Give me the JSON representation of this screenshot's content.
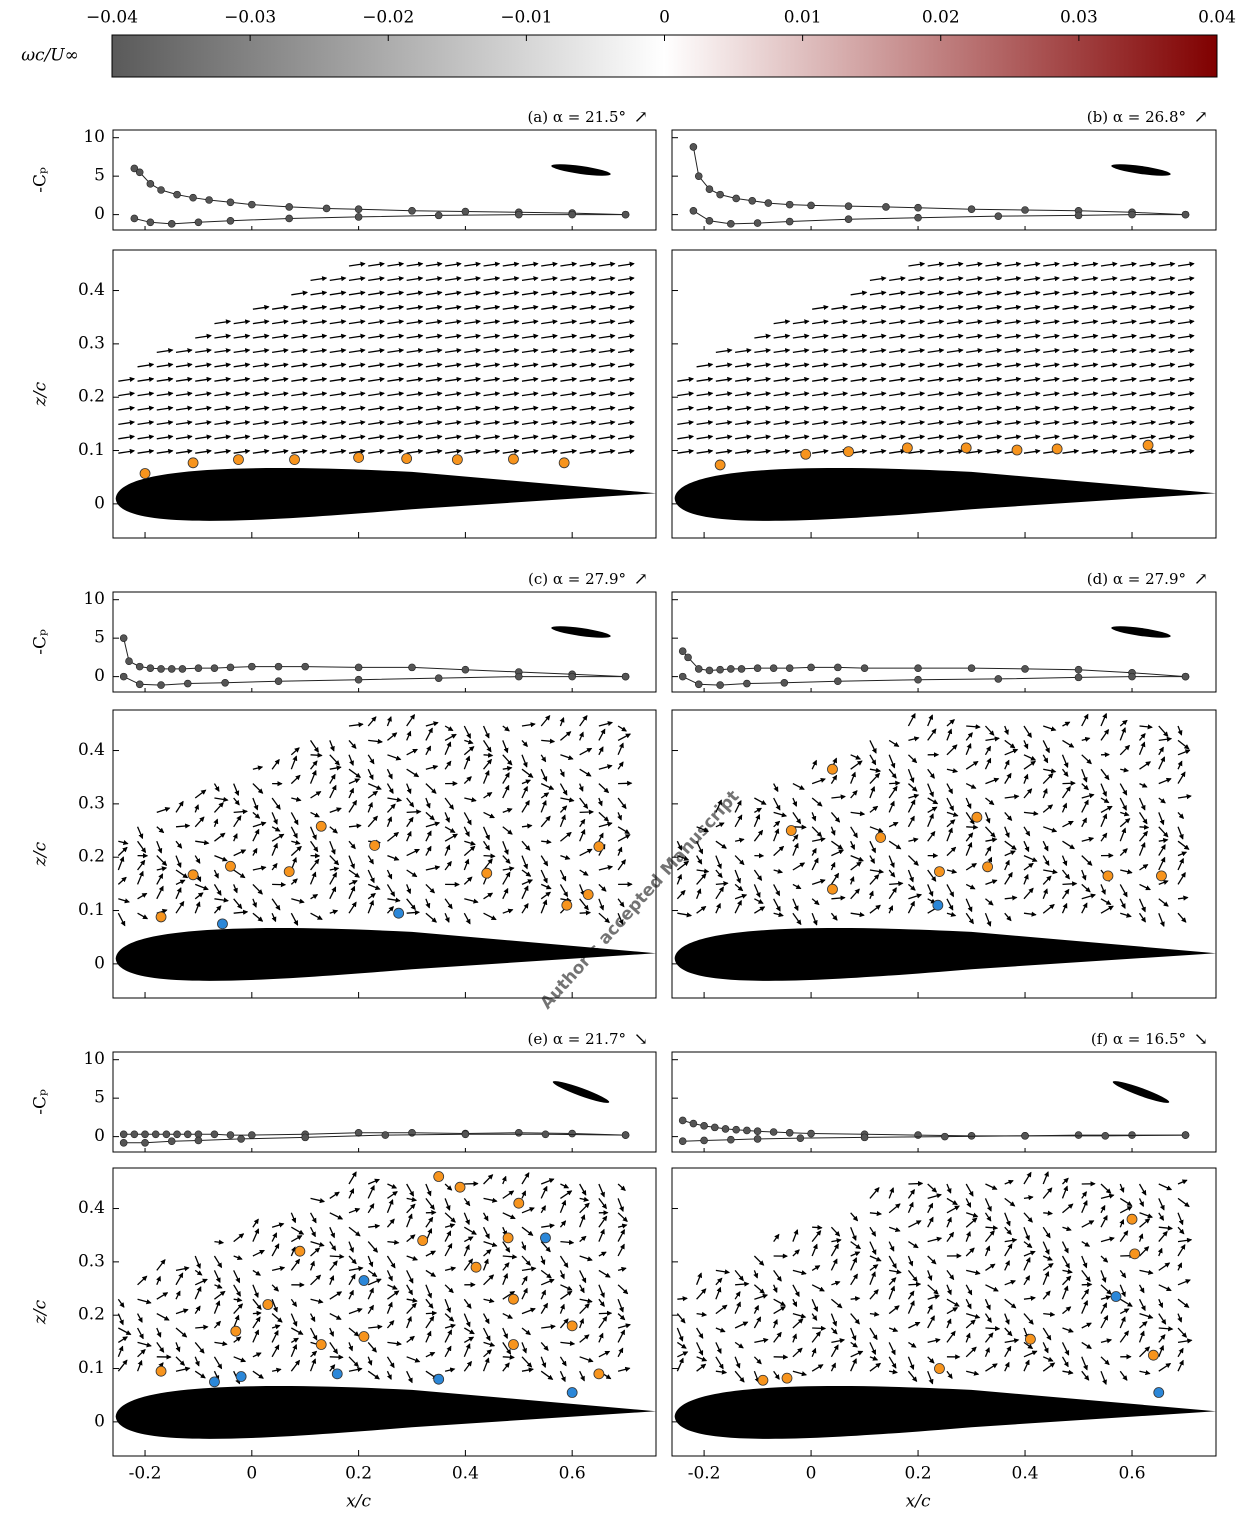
{
  "chart_data": {
    "type": "panels",
    "colorbar": {
      "label": "ωc/U∞",
      "lim": [
        -0.04,
        0.04
      ],
      "ticks": [
        {
          "value": -0.04,
          "label": "−0.04"
        },
        {
          "value": -0.03,
          "label": "−0.03"
        },
        {
          "value": -0.02,
          "label": "−0.02"
        },
        {
          "value": -0.01,
          "label": "−0.01"
        },
        0,
        0.01,
        0.02,
        0.03,
        0.04
      ],
      "colors": [
        "#5a5a5a",
        "#ffffff",
        "#800000"
      ]
    },
    "cp_label": "-Cₚ",
    "cp_ylim": [
      -2,
      11
    ],
    "cp_yticks": [
      0,
      5,
      10
    ],
    "z_label": "z/c",
    "field_ylim": [
      -0.064,
      0.476
    ],
    "field_yticks": [
      0,
      0.1,
      0.2,
      0.3,
      0.4
    ],
    "x_label": "x/c",
    "xlim": [
      -0.26,
      0.757
    ],
    "xticks": [
      -0.2,
      0,
      0.2,
      0.4,
      0.6
    ],
    "cp_color": "#555555",
    "panels": [
      {
        "title": "(a) α = 21.5°",
        "direction": "↗",
        "cp": [
          {
            "x": [
              -0.22,
              -0.21,
              -0.19,
              -0.17,
              -0.14,
              -0.11,
              -0.08,
              -0.04,
              0,
              0.07,
              0.14,
              0.2,
              0.3,
              0.4,
              0.5,
              0.6,
              0.7
            ],
            "values": [
              6,
              5.5,
              4,
              3.2,
              2.6,
              2.2,
              1.9,
              1.6,
              1.3,
              1.0,
              0.8,
              0.7,
              0.5,
              0.4,
              0.3,
              0.2,
              0
            ]
          },
          {
            "x": [
              -0.22,
              -0.19,
              -0.15,
              -0.1,
              -0.04,
              0.07,
              0.2,
              0.35,
              0.5,
              0.6,
              0.7
            ],
            "values": [
              -0.5,
              -1,
              -1.2,
              -1,
              -0.8,
              -0.5,
              -0.3,
              -0.1,
              0,
              0,
              0
            ]
          }
        ],
        "vortices": [
          {
            "color": "#f7941d",
            "x": [
              -0.2,
              -0.11,
              -0.025,
              0.08,
              0.2,
              0.29,
              0.385,
              0.49,
              0.585
            ],
            "z": [
              0.057,
              0.077,
              0.083,
              0.083,
              0.087,
              0.085,
              0.083,
              0.084,
              0.077
            ]
          },
          {
            "color": "#2b87d8",
            "x": [],
            "z": []
          }
        ]
      },
      {
        "title": "(b) α = 26.8°",
        "direction": "↗",
        "cp": [
          {
            "x": [
              -0.22,
              -0.21,
              -0.19,
              -0.17,
              -0.14,
              -0.11,
              -0.08,
              -0.04,
              0,
              0.07,
              0.14,
              0.2,
              0.3,
              0.4,
              0.5,
              0.6,
              0.7
            ],
            "values": [
              8.8,
              5,
              3.3,
              2.6,
              2.1,
              1.8,
              1.5,
              1.3,
              1.2,
              1.1,
              1.0,
              0.9,
              0.7,
              0.6,
              0.5,
              0.3,
              0
            ]
          },
          {
            "x": [
              -0.22,
              -0.19,
              -0.15,
              -0.1,
              -0.04,
              0.07,
              0.2,
              0.35,
              0.5,
              0.6,
              0.7
            ],
            "values": [
              0.5,
              -0.8,
              -1.2,
              -1.1,
              -0.9,
              -0.6,
              -0.4,
              -0.2,
              -0.1,
              0,
              0
            ]
          }
        ],
        "vortices": [
          {
            "color": "#f7941d",
            "x": [
              -0.17,
              -0.01,
              0.07,
              0.18,
              0.29,
              0.385,
              0.46,
              0.63
            ],
            "z": [
              0.073,
              0.093,
              0.098,
              0.105,
              0.105,
              0.101,
              0.103,
              0.11
            ]
          },
          {
            "color": "#2b87d8",
            "x": [],
            "z": []
          }
        ]
      },
      {
        "title": "(c) α = 27.9°",
        "direction": "↗",
        "cp": [
          {
            "x": [
              -0.24,
              -0.23,
              -0.21,
              -0.19,
              -0.17,
              -0.15,
              -0.13,
              -0.1,
              -0.07,
              -0.04,
              0,
              0.05,
              0.1,
              0.2,
              0.3,
              0.4,
              0.5,
              0.6,
              0.7
            ],
            "values": [
              5,
              2,
              1.3,
              1.1,
              1,
              1,
              1,
              1.1,
              1.1,
              1.2,
              1.3,
              1.3,
              1.3,
              1.2,
              1.2,
              0.9,
              0.6,
              0.3,
              0
            ]
          },
          {
            "x": [
              -0.24,
              -0.21,
              -0.17,
              -0.12,
              -0.05,
              0.05,
              0.2,
              0.35,
              0.5,
              0.6,
              0.7
            ],
            "values": [
              0,
              -1,
              -1.1,
              -0.9,
              -0.8,
              -0.6,
              -0.4,
              -0.2,
              0,
              0,
              0
            ]
          }
        ],
        "vortices": [
          {
            "color": "#f7941d",
            "x": [
              -0.17,
              -0.11,
              -0.04,
              0.07,
              0.13,
              0.23,
              0.44,
              0.59,
              0.65,
              0.63
            ],
            "z": [
              0.088,
              0.167,
              0.183,
              0.173,
              0.258,
              0.222,
              0.17,
              0.11,
              0.22,
              0.13
            ]
          },
          {
            "color": "#2b87d8",
            "x": [
              -0.055,
              0.275
            ],
            "z": [
              0.075,
              0.095
            ]
          }
        ]
      },
      {
        "title": "(d) α = 27.9°",
        "direction": "↗",
        "cp": [
          {
            "x": [
              -0.24,
              -0.23,
              -0.21,
              -0.19,
              -0.17,
              -0.15,
              -0.13,
              -0.1,
              -0.07,
              -0.04,
              0,
              0.05,
              0.1,
              0.2,
              0.3,
              0.4,
              0.5,
              0.6,
              0.7
            ],
            "values": [
              3.3,
              2.5,
              1,
              0.8,
              0.9,
              1,
              1,
              1.1,
              1.1,
              1.1,
              1.2,
              1.2,
              1.1,
              1.1,
              1.1,
              1,
              0.9,
              0.5,
              0
            ]
          },
          {
            "x": [
              -0.24,
              -0.21,
              -0.17,
              -0.12,
              -0.05,
              0.05,
              0.2,
              0.35,
              0.5,
              0.6,
              0.7
            ],
            "values": [
              0,
              -1,
              -1.1,
              -0.9,
              -0.8,
              -0.6,
              -0.4,
              -0.3,
              -0.1,
              0,
              0
            ]
          }
        ],
        "vortices": [
          {
            "color": "#f7941d",
            "x": [
              0.04,
              -0.037,
              0.13,
              0.04,
              0.24,
              0.31,
              0.33,
              0.555,
              0.655
            ],
            "z": [
              0.365,
              0.25,
              0.237,
              0.14,
              0.173,
              0.275,
              0.182,
              0.165,
              0.165
            ]
          },
          {
            "color": "#2b87d8",
            "x": [
              0.237
            ],
            "z": [
              0.11
            ]
          }
        ]
      },
      {
        "title": "(e) α = 21.7°",
        "direction": "↘",
        "cp": [
          {
            "x": [
              -0.24,
              -0.22,
              -0.2,
              -0.18,
              -0.16,
              -0.14,
              -0.12,
              -0.1,
              -0.07,
              -0.04,
              0,
              0.1,
              0.2,
              0.3,
              0.4,
              0.5,
              0.6,
              0.7
            ],
            "values": [
              0.3,
              0.3,
              0.3,
              0.3,
              0.3,
              0.3,
              0.3,
              0.3,
              0.3,
              0.2,
              0.2,
              0.3,
              0.5,
              0.5,
              0.4,
              0.5,
              0.4,
              0.2
            ]
          },
          {
            "x": [
              -0.24,
              -0.2,
              -0.15,
              -0.1,
              -0.02,
              0.1,
              0.25,
              0.4,
              0.55,
              0.7
            ],
            "values": [
              -0.8,
              -0.8,
              -0.6,
              -0.5,
              -0.3,
              -0.1,
              0.2,
              0.3,
              0.3,
              0.2
            ]
          }
        ],
        "vortices": [
          {
            "color": "#f7941d",
            "x": [
              -0.17,
              -0.03,
              0.03,
              0.09,
              0.13,
              0.21,
              0.32,
              0.35,
              0.39,
              0.42,
              0.48,
              0.49,
              0.49,
              0.5,
              0.6,
              0.65
            ],
            "z": [
              0.095,
              0.17,
              0.22,
              0.32,
              0.145,
              0.16,
              0.34,
              0.46,
              0.44,
              0.29,
              0.345,
              0.23,
              0.145,
              0.41,
              0.18,
              0.09
            ]
          },
          {
            "color": "#2b87d8",
            "x": [
              -0.07,
              -0.02,
              0.16,
              0.21,
              0.35,
              0.55,
              0.6
            ],
            "z": [
              0.075,
              0.085,
              0.09,
              0.265,
              0.08,
              0.345,
              0.055
            ]
          }
        ]
      },
      {
        "title": "(f) α = 16.5°",
        "direction": "↘",
        "cp": [
          {
            "x": [
              -0.24,
              -0.22,
              -0.2,
              -0.18,
              -0.16,
              -0.14,
              -0.12,
              -0.1,
              -0.07,
              -0.04,
              0,
              0.1,
              0.2,
              0.3,
              0.4,
              0.5,
              0.6,
              0.7
            ],
            "values": [
              2.1,
              1.7,
              1.4,
              1.2,
              1,
              0.9,
              0.8,
              0.7,
              0.6,
              0.5,
              0.4,
              0.3,
              0.2,
              0.1,
              0.1,
              0.2,
              0.2,
              0.2
            ]
          },
          {
            "x": [
              -0.24,
              -0.2,
              -0.15,
              -0.1,
              -0.02,
              0.1,
              0.25,
              0.4,
              0.55,
              0.7
            ],
            "values": [
              -0.6,
              -0.5,
              -0.4,
              -0.3,
              -0.2,
              -0.1,
              0,
              0.1,
              0.1,
              0.2
            ]
          }
        ],
        "vortices": [
          {
            "color": "#f7941d",
            "x": [
              -0.09,
              -0.045,
              0.24,
              0.41,
              0.6,
              0.605,
              0.64
            ],
            "z": [
              0.078,
              0.082,
              0.1,
              0.155,
              0.38,
              0.315,
              0.125
            ]
          },
          {
            "color": "#2b87d8",
            "x": [
              0.57,
              0.65
            ],
            "z": [
              0.235,
              0.055
            ]
          }
        ]
      }
    ]
  },
  "watermark": "Author's accepted Manuscript"
}
